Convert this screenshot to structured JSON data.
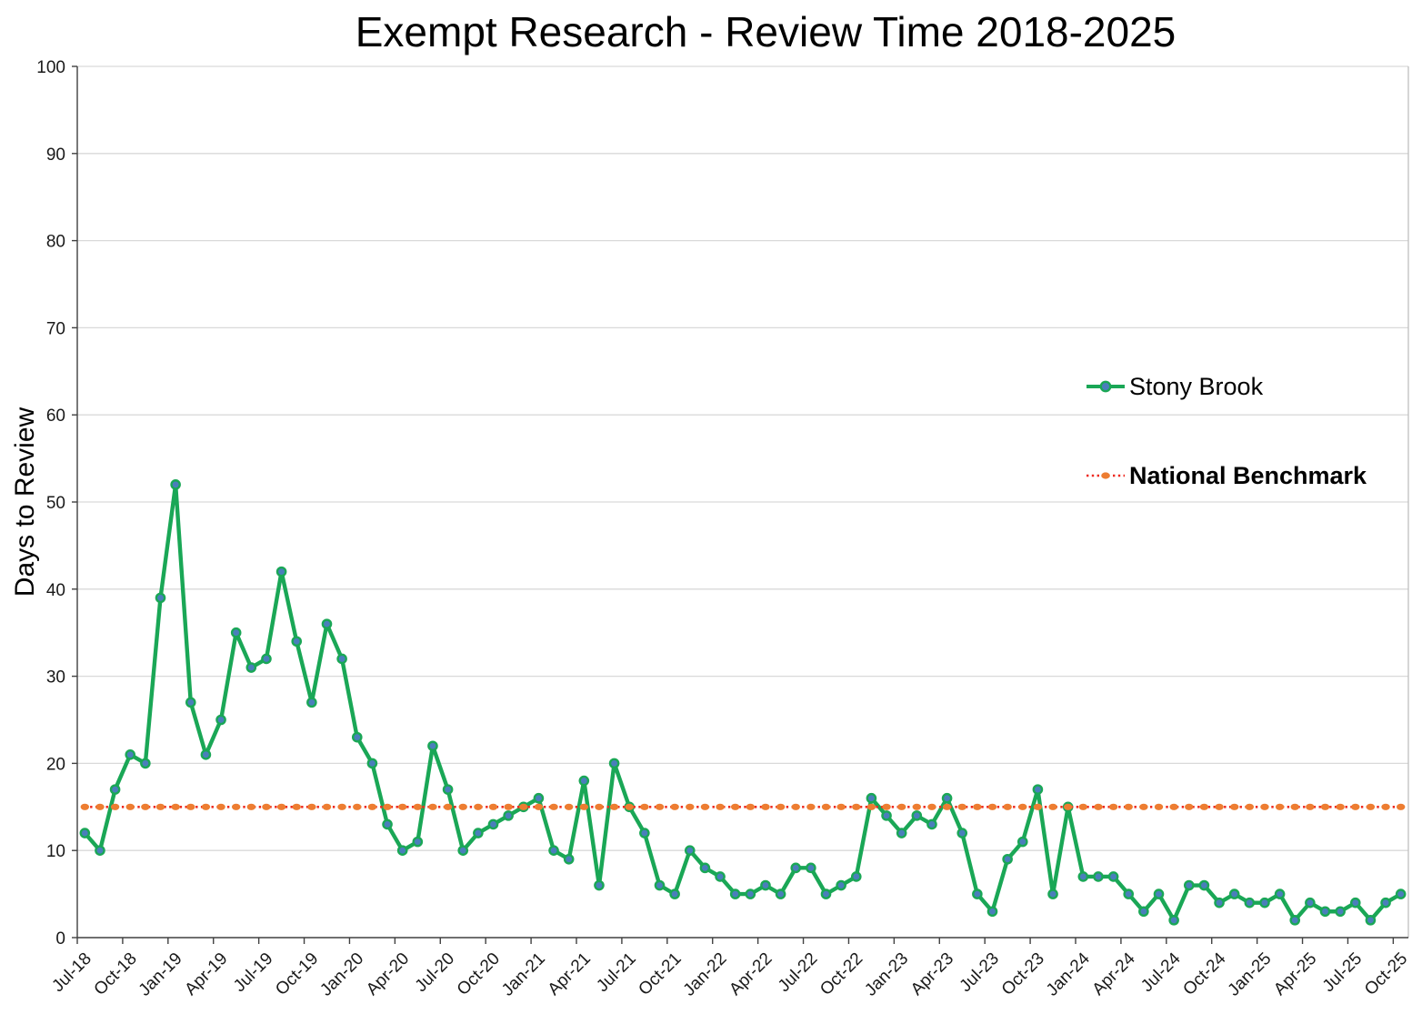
{
  "title": "Exempt Research - Review Time 2018-2025",
  "y_axis": {
    "title": "Days to Review",
    "min": 0,
    "max": 100,
    "step": 10
  },
  "legend": [
    {
      "label": "Stony Brook",
      "bold": false
    },
    {
      "label": "National Benchmark",
      "bold": true
    }
  ],
  "colors": {
    "stony_line": "#1aa756",
    "stony_marker_fill": "#4a7ebb",
    "benchmark_line": "#ee2a21",
    "benchmark_marker": "#ed7d31",
    "gridline": "#d9d9d9",
    "axis": "#404040",
    "plot_border": "#bfbfbf",
    "tick_text": "#1a1a1a"
  },
  "chart_data": {
    "type": "line",
    "title": "Exempt Research - Review Time 2018-2025",
    "xlabel": "",
    "ylabel": "Days to Review",
    "ylim": [
      0,
      100
    ],
    "grid": "horizontal",
    "legend_position": "right-middle",
    "x_tick_every": 3,
    "categories": [
      "Jul-18",
      "Aug-18",
      "Sep-18",
      "Oct-18",
      "Nov-18",
      "Dec-18",
      "Jan-19",
      "Feb-19",
      "Mar-19",
      "Apr-19",
      "May-19",
      "Jun-19",
      "Jul-19",
      "Aug-19",
      "Sep-19",
      "Oct-19",
      "Nov-19",
      "Dec-19",
      "Jan-20",
      "Feb-20",
      "Mar-20",
      "Apr-20",
      "May-20",
      "Jun-20",
      "Jul-20",
      "Aug-20",
      "Sep-20",
      "Oct-20",
      "Nov-20",
      "Dec-20",
      "Jan-21",
      "Feb-21",
      "Mar-21",
      "Apr-21",
      "May-21",
      "Jun-21",
      "Jul-21",
      "Aug-21",
      "Sep-21",
      "Oct-21",
      "Nov-21",
      "Dec-21",
      "Jan-22",
      "Feb-22",
      "Mar-22",
      "Apr-22",
      "May-22",
      "Jun-22",
      "Jul-22",
      "Aug-22",
      "Sep-22",
      "Oct-22",
      "Nov-22",
      "Dec-22",
      "Jan-23",
      "Feb-23",
      "Mar-23",
      "Apr-23",
      "May-23",
      "Jun-23",
      "Jul-23",
      "Aug-23",
      "Sep-23",
      "Oct-23",
      "Nov-23",
      "Dec-23",
      "Jan-24",
      "Feb-24",
      "Mar-24",
      "Apr-24",
      "May-24",
      "Jun-24",
      "Jul-24",
      "Aug-24",
      "Sep-24",
      "Oct-24",
      "Nov-24",
      "Dec-24",
      "Jan-25",
      "Feb-25",
      "Mar-25",
      "Apr-25",
      "May-25",
      "Jun-25",
      "Jul-25",
      "Aug-25",
      "Sep-25",
      "Oct-25"
    ],
    "series": [
      {
        "name": "Stony Brook",
        "values": [
          12,
          10,
          17,
          21,
          20,
          39,
          52,
          27,
          21,
          25,
          35,
          31,
          32,
          42,
          34,
          27,
          36,
          32,
          23,
          20,
          13,
          10,
          11,
          22,
          17,
          10,
          12,
          13,
          14,
          15,
          16,
          10,
          9,
          18,
          6,
          20,
          15,
          12,
          6,
          5,
          10,
          8,
          7,
          5,
          5,
          6,
          5,
          8,
          8,
          5,
          6,
          7,
          16,
          14,
          12,
          14,
          13,
          16,
          12,
          5,
          3,
          9,
          11,
          17,
          5,
          15,
          7,
          7,
          7,
          5,
          3,
          5,
          2,
          6,
          6,
          4,
          5,
          4,
          4,
          5,
          2,
          4,
          3,
          3,
          4,
          2,
          4,
          5
        ]
      },
      {
        "name": "National Benchmark",
        "constant_value": 15
      }
    ]
  }
}
